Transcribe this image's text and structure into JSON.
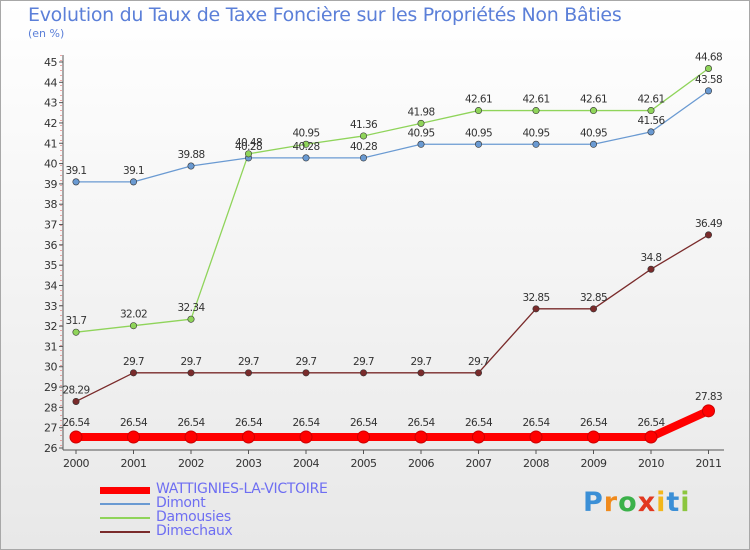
{
  "title": "Evolution du Taux de Taxe Foncière sur les Propriétés Non Bâties",
  "unit_label": "(en %)",
  "logo_text": "Proxiti",
  "chart_data": {
    "type": "line",
    "title": "Evolution du Taux de Taxe Foncière sur les Propriétés Non Bâties",
    "ylabel": "(en %)",
    "xlabel": "",
    "x": [
      "2000",
      "2001",
      "2002",
      "2003",
      "2004",
      "2005",
      "2006",
      "2007",
      "2008",
      "2009",
      "2010",
      "2011"
    ],
    "ylim": [
      26,
      45
    ],
    "yticks": [
      26,
      27,
      28,
      29,
      30,
      31,
      32,
      33,
      34,
      35,
      36,
      37,
      38,
      39,
      40,
      41,
      42,
      43,
      44,
      45
    ],
    "grid": false,
    "legend_position": "bottom-left",
    "series": [
      {
        "name": "WATTIGNIES-LA-VICTOIRE",
        "color": "#ff0000",
        "values": [
          26.54,
          26.54,
          26.54,
          26.54,
          26.54,
          26.54,
          26.54,
          26.54,
          26.54,
          26.54,
          26.54,
          27.83
        ],
        "labels": [
          "26.54",
          "26.54",
          "26.54",
          "26.54",
          "26.54",
          "26.54",
          "26.54",
          "26.54",
          "26.54",
          "26.54",
          "26.54",
          "27.83"
        ]
      },
      {
        "name": "Dimont",
        "color": "#6a9ad2",
        "values": [
          39.1,
          39.1,
          39.88,
          40.28,
          40.28,
          40.28,
          40.95,
          40.95,
          40.95,
          40.95,
          41.56,
          43.58
        ],
        "labels": [
          "39.1",
          "39.1",
          "39.88",
          "40.28",
          "40.28",
          "40.28",
          "40.95",
          "40.95",
          "40.95",
          "40.95",
          "41.56",
          "43.58"
        ]
      },
      {
        "name": "Damousies",
        "color": "#8fd45a",
        "values": [
          31.7,
          32.02,
          32.34,
          40.48,
          40.95,
          41.36,
          41.98,
          42.61,
          42.61,
          42.61,
          42.61,
          44.68
        ],
        "labels": [
          "31.7",
          "32.02",
          "32.34",
          "40.48",
          "40.95",
          "41.36",
          "41.98",
          "42.61",
          "42.61",
          "42.61",
          "42.61",
          "44.68"
        ]
      },
      {
        "name": "Dimechaux",
        "color": "#7a2b2b",
        "values": [
          28.29,
          29.7,
          29.7,
          29.7,
          29.7,
          29.7,
          29.7,
          29.7,
          32.85,
          32.85,
          34.8,
          36.49
        ],
        "labels": [
          "28.29",
          "29.7",
          "29.7",
          "29.7",
          "29.7",
          "29.7",
          "29.7",
          "29.7",
          "32.85",
          "32.85",
          "34.8",
          "36.49"
        ]
      }
    ]
  }
}
